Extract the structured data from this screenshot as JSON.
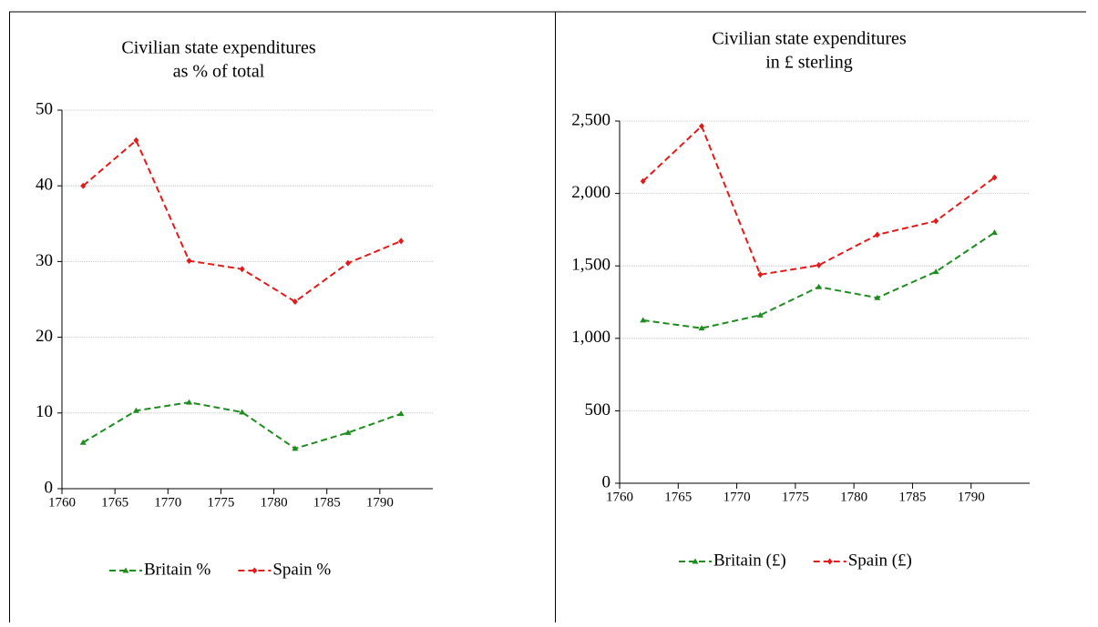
{
  "chart_data": [
    {
      "type": "line",
      "title": [
        "Civilian state expenditures",
        "as % of total"
      ],
      "x": [
        1762,
        1767,
        1772,
        1777,
        1782,
        1787,
        1792
      ],
      "xlim": [
        1760,
        1795
      ],
      "xticks": [
        1760,
        1765,
        1770,
        1775,
        1780,
        1785,
        1790
      ],
      "ylim": [
        0,
        50
      ],
      "yticks": [
        0,
        10,
        20,
        30,
        40,
        50
      ],
      "grid": true,
      "legend": "bottom",
      "series": [
        {
          "name": "Britain %",
          "color": "#1e8c1e",
          "marker": "triangle",
          "values": [
            6.1,
            10.3,
            11.4,
            10.1,
            5.3,
            7.4,
            9.9
          ]
        },
        {
          "name": "Spain %",
          "color": "#e31a1a",
          "marker": "diamond",
          "values": [
            40,
            46,
            30.1,
            29,
            24.7,
            29.8,
            32.7
          ]
        }
      ]
    },
    {
      "type": "line",
      "title": [
        "Civilian state expenditures",
        "in £ sterling"
      ],
      "x": [
        1762,
        1767,
        1772,
        1777,
        1782,
        1787,
        1792
      ],
      "xlim": [
        1760,
        1795
      ],
      "xticks": [
        1760,
        1765,
        1770,
        1775,
        1780,
        1785,
        1790
      ],
      "ylim": [
        0,
        2500
      ],
      "yticks": [
        0,
        500,
        {
          "value": 1000,
          "label": "1,000"
        },
        {
          "value": 1500,
          "label": "1,500"
        },
        {
          "value": 2000,
          "label": "2,000"
        },
        {
          "value": 2500,
          "label": "2,500"
        }
      ],
      "grid": true,
      "legend": "bottom",
      "series": [
        {
          "name": "Britain (£)",
          "color": "#1e8c1e",
          "marker": "triangle",
          "values": [
            1125,
            1070,
            1160,
            1355,
            1280,
            1460,
            1730
          ]
        },
        {
          "name": "Spain (£)",
          "color": "#e31a1a",
          "marker": "diamond",
          "values": [
            2085,
            2465,
            1440,
            1505,
            1715,
            1810,
            2110
          ]
        }
      ]
    }
  ]
}
